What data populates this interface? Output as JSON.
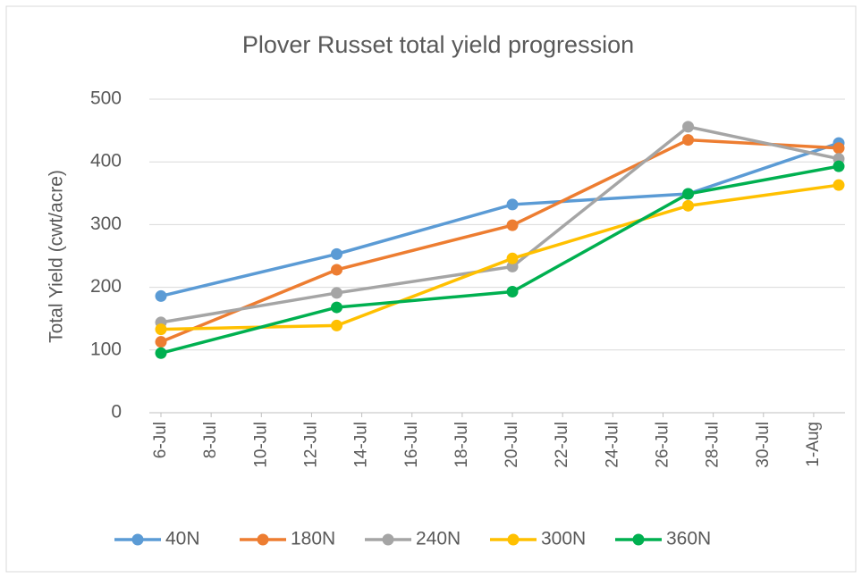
{
  "chart_data": {
    "type": "line",
    "title": "Plover Russet total yield progression",
    "y_label": "Total Yield (cwt/acre)",
    "x": [
      "6-Jul",
      "13-Jul",
      "20-Jul",
      "27-Jul",
      "2-Aug"
    ],
    "xlim": [
      "6-Jul",
      "2-Aug"
    ],
    "xticks": [
      "6-Jul",
      "8-Jul",
      "10-Jul",
      "12-Jul",
      "14-Jul",
      "16-Jul",
      "18-Jul",
      "20-Jul",
      "22-Jul",
      "24-Jul",
      "26-Jul",
      "28-Jul",
      "30-Jul",
      "1-Aug"
    ],
    "ylim": [
      0,
      500
    ],
    "yticks": [
      0,
      100,
      200,
      300,
      400,
      500
    ],
    "grid": true,
    "legend": "bottom",
    "series": [
      {
        "name": "40N",
        "color": "#5b9bd5",
        "values": [
          186,
          253,
          332,
          349,
          430
        ]
      },
      {
        "name": "180N",
        "color": "#ed7d31",
        "values": [
          113,
          228,
          299,
          435,
          422
        ]
      },
      {
        "name": "240N",
        "color": "#a5a5a5",
        "values": [
          144,
          191,
          233,
          456,
          405
        ]
      },
      {
        "name": "300N",
        "color": "#ffc000",
        "values": [
          133,
          139,
          246,
          330,
          363
        ]
      },
      {
        "name": "360N",
        "color": "#00b050",
        "values": [
          95,
          168,
          193,
          349,
          393
        ]
      }
    ]
  }
}
